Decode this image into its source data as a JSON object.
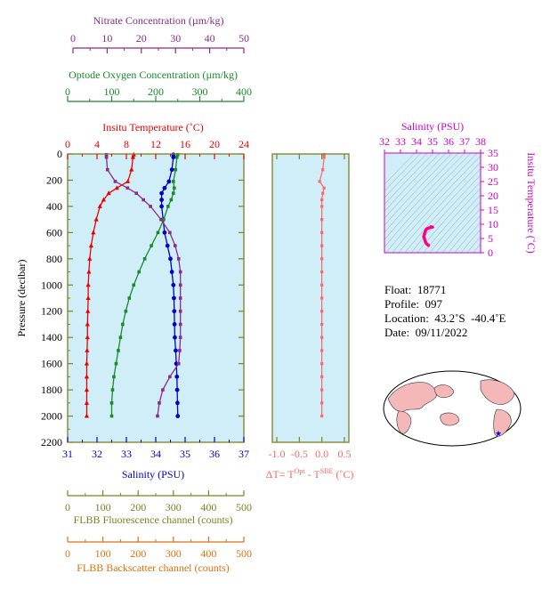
{
  "nitrate_axis": {
    "label": "Nitrate Concentration (µm/kg)",
    "ticks": [
      "0",
      "10",
      "20",
      "30",
      "40",
      "50"
    ],
    "color": "#8b2a8b"
  },
  "oxygen_axis": {
    "label": "Optode Oxygen Concentration (µm/kg)",
    "ticks": [
      "0",
      "100",
      "200",
      "300",
      "400"
    ],
    "color": "#1a8a2a"
  },
  "temperature_axis": {
    "label": "Insitu Temperature (˚C)",
    "ticks": [
      "0",
      "4",
      "8",
      "12",
      "16",
      "20",
      "24"
    ],
    "color": "#ee0000"
  },
  "salinity_axis": {
    "label": "Salinity (PSU)",
    "ticks": [
      "31",
      "32",
      "33",
      "34",
      "35",
      "36",
      "37"
    ],
    "color": "#0000cc"
  },
  "pressure_axis": {
    "label": "Pressure (decibar)",
    "ticks": [
      "0",
      "200",
      "400",
      "600",
      "800",
      "1000",
      "1200",
      "1400",
      "1600",
      "1800",
      "2000",
      "2200"
    ]
  },
  "delta_t_axis": {
    "label_pre": "ΔT= T",
    "sup1": "Opt",
    "label_mid": " - T",
    "sup2": "SBE",
    "label_post": " (˚C)",
    "ticks": [
      "-1.0",
      "-0.5",
      "0.0",
      "0.5"
    ],
    "color": "#ff6666"
  },
  "fluorescence_axis": {
    "label": "FLBB Fluorescence channel (counts)",
    "ticks": [
      "0",
      "100",
      "200",
      "300",
      "400",
      "500"
    ],
    "color": "#808020"
  },
  "backscatter_axis": {
    "label": "FLBB Backscatter channel (counts)",
    "ticks": [
      "0",
      "100",
      "200",
      "300",
      "400",
      "500"
    ],
    "color": "#e07010"
  },
  "ts_salinity_axis": {
    "label": "Salinity (PSU)",
    "ticks": [
      "32",
      "33",
      "34",
      "35",
      "36",
      "37",
      "38"
    ],
    "color": "#cc00cc"
  },
  "ts_temperature_axis": {
    "label": "Insitu Temperature (˚C)",
    "ticks": [
      "0",
      "5",
      "10",
      "15",
      "20",
      "25",
      "30",
      "35"
    ],
    "color": "#cc00cc"
  },
  "info": {
    "float": "Float:  18771",
    "profile": "Profile:  097",
    "location": "Location:  43.2˚S  -40.4˚E",
    "date": "Date:  09/11/2022"
  },
  "colors": {
    "panel_bg": "#d0eef8",
    "frame": "#808020",
    "ts_line": "#ff0080",
    "map_land": "#f4b8b8",
    "map_ocean": "#ffffff",
    "float_marker": "#0000ff"
  },
  "chart_data": [
    {
      "type": "line",
      "name": "profile-panel",
      "ylim": [
        0,
        2200
      ],
      "series": [
        {
          "name": "Insitu Temperature",
          "xlim": [
            0,
            24
          ],
          "color": "#ee0000",
          "marker": "triangle",
          "x": [
            9.0,
            8.9,
            8.7,
            8.2,
            6.7,
            5.6,
            4.9,
            4.4,
            3.9,
            3.5,
            3.2,
            3.0,
            2.9,
            2.8,
            2.8,
            2.75,
            2.7,
            2.7,
            2.65,
            2.6,
            2.6,
            2.6,
            2.6,
            2.6
          ],
          "y": [
            5,
            25,
            120,
            210,
            260,
            300,
            350,
            400,
            500,
            600,
            700,
            800,
            900,
            1000,
            1100,
            1200,
            1300,
            1400,
            1500,
            1600,
            1700,
            1800,
            1900,
            2000
          ]
        },
        {
          "name": "Salinity",
          "xlim": [
            31,
            37
          ],
          "color": "#0000cc",
          "marker": "circle",
          "x": [
            34.6,
            34.6,
            34.55,
            34.45,
            34.3,
            34.2,
            34.2,
            34.2,
            34.25,
            34.3,
            34.4,
            34.5,
            34.55,
            34.6,
            34.62,
            34.63,
            34.64,
            34.65,
            34.68,
            34.7,
            34.72,
            34.73,
            34.74,
            34.75
          ],
          "y": [
            5,
            25,
            120,
            210,
            260,
            300,
            350,
            400,
            500,
            600,
            700,
            800,
            900,
            1000,
            1100,
            1200,
            1300,
            1400,
            1500,
            1600,
            1700,
            1800,
            1900,
            2000
          ]
        },
        {
          "name": "Optode Oxygen Concentration",
          "xlim": [
            0,
            400
          ],
          "color": "#1a8a2a",
          "marker": "square",
          "x": [
            250,
            248,
            245,
            240,
            242,
            240,
            235,
            228,
            218,
            205,
            190,
            175,
            162,
            150,
            140,
            132,
            125,
            120,
            115,
            110,
            105,
            102,
            100,
            100
          ],
          "y": [
            5,
            25,
            120,
            210,
            260,
            300,
            350,
            400,
            500,
            600,
            700,
            800,
            900,
            1000,
            1100,
            1200,
            1300,
            1400,
            1500,
            1600,
            1700,
            1800,
            1900,
            2000
          ]
        },
        {
          "name": "Nitrate Concentration",
          "xlim": [
            0,
            50
          ],
          "color": "#8b2a8b",
          "marker": "square",
          "x": [
            11.0,
            11.0,
            11.3,
            13.5,
            17.0,
            19.5,
            21.5,
            23.5,
            26.5,
            29.0,
            30.5,
            31.5,
            32.0,
            32.0,
            32.0,
            32.0,
            32.0,
            32.0,
            31.8,
            31.5,
            29.0,
            27.0,
            26.0,
            25.5
          ],
          "y": [
            5,
            25,
            120,
            210,
            260,
            300,
            350,
            400,
            500,
            600,
            700,
            800,
            900,
            1000,
            1100,
            1200,
            1300,
            1400,
            1500,
            1600,
            1700,
            1800,
            1900,
            2000
          ]
        }
      ]
    },
    {
      "type": "line",
      "name": "delta-t-panel",
      "xlim": [
        -1.1,
        0.6
      ],
      "ylim": [
        0,
        2200
      ],
      "series": [
        {
          "name": "ΔT",
          "color": "#ff6666",
          "marker": "square",
          "x": [
            0.05,
            0.05,
            0.02,
            -0.05,
            0.05,
            0.02,
            0.0,
            0.0,
            0.0,
            0.0,
            0.0,
            0.0,
            0.0,
            0.0,
            0.0,
            0.0,
            0.0,
            0.0,
            0.0,
            0.0,
            0.0,
            0.0,
            0.0,
            0.0
          ],
          "y": [
            5,
            25,
            120,
            210,
            260,
            300,
            350,
            400,
            500,
            600,
            700,
            800,
            900,
            1000,
            1100,
            1200,
            1300,
            1400,
            1500,
            1600,
            1700,
            1800,
            1900,
            2000
          ]
        }
      ]
    },
    {
      "type": "line",
      "name": "ts-diagram",
      "xlim": [
        32,
        38
      ],
      "ylim": [
        0,
        35
      ],
      "series": [
        {
          "name": "T-S",
          "color": "#ff0080",
          "x": [
            34.75,
            34.72,
            34.68,
            34.62,
            34.55,
            34.5,
            34.45,
            34.5,
            34.6,
            34.75,
            34.9,
            35.0,
            34.9
          ],
          "y": [
            2.6,
            2.7,
            2.9,
            3.2,
            3.9,
            4.9,
            5.6,
            6.7,
            8.2,
            8.7,
            8.9,
            9.0,
            9.1
          ]
        }
      ]
    }
  ]
}
